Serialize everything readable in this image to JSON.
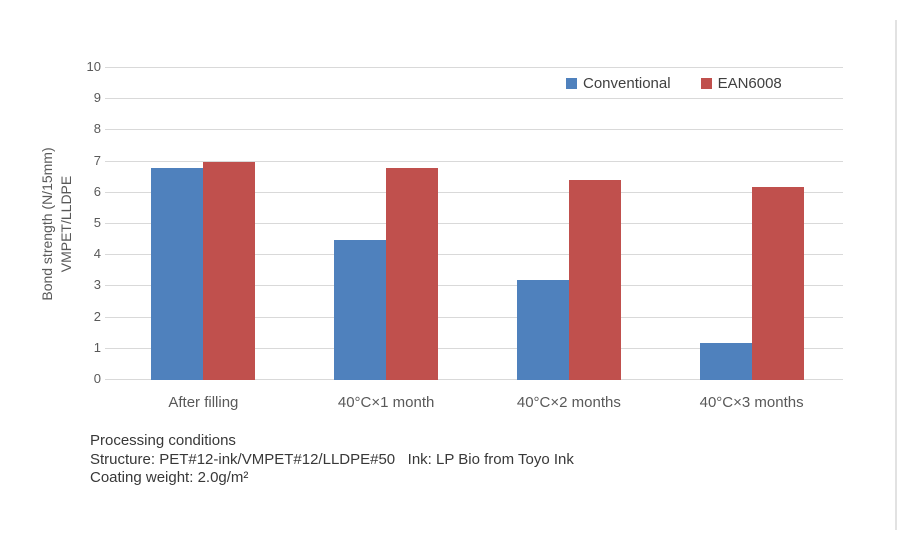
{
  "chart_data": {
    "type": "bar",
    "title": "",
    "categories": [
      "After filling",
      "40°C×1 month",
      "40°C×2 months",
      "40°C×3 months"
    ],
    "series": [
      {
        "name": "Conventional",
        "color": "#4F81BD",
        "values": [
          6.8,
          4.5,
          3.2,
          1.2
        ]
      },
      {
        "name": "EAN6008",
        "color": "#C0504D",
        "values": [
          7.0,
          6.8,
          6.4,
          6.2
        ]
      }
    ],
    "ylabel_lines": [
      "Bond strength (N/15mm)",
      "VMPET/LLDPE"
    ],
    "xlabel": "",
    "ylim": [
      0,
      10
    ],
    "ytick_step": 1,
    "grid": "horizontal",
    "gridline_color": "#d9d9d9",
    "legend_position": "top-right"
  },
  "notes": {
    "line1": "Processing conditions",
    "line2": "Structure: PET#12-ink/VMPET#12/LLDPE#50   Ink: LP Bio from Toyo Ink",
    "line3": "Coating weight: 2.0g/m²"
  }
}
